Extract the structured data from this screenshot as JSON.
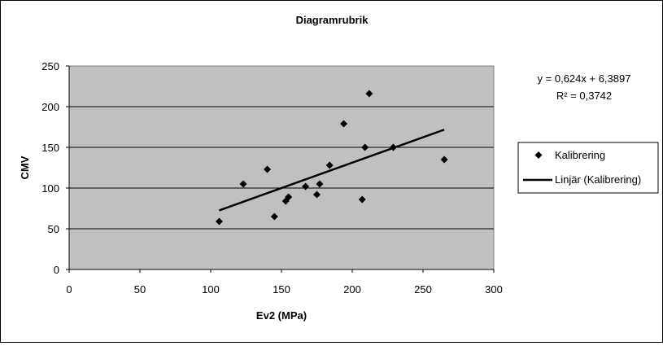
{
  "chart_data": {
    "type": "scatter",
    "title": "Diagramrubrik",
    "xlabel": "Ev2 (MPa)",
    "ylabel": "CMV",
    "xlim": [
      0,
      300
    ],
    "ylim": [
      0,
      250
    ],
    "xticks": [
      "0",
      "50",
      "100",
      "150",
      "200",
      "250",
      "300"
    ],
    "yticks": [
      "0",
      "50",
      "100",
      "150",
      "200",
      "250"
    ],
    "grid": "horizontal",
    "legend_position": "right",
    "series": [
      {
        "name": "Kalibrering",
        "marker": "diamond",
        "color": "#000000",
        "points": [
          {
            "x": 106,
            "y": 59
          },
          {
            "x": 123,
            "y": 105
          },
          {
            "x": 140,
            "y": 123
          },
          {
            "x": 145,
            "y": 65
          },
          {
            "x": 153,
            "y": 84
          },
          {
            "x": 155,
            "y": 89
          },
          {
            "x": 167,
            "y": 102
          },
          {
            "x": 175,
            "y": 92
          },
          {
            "x": 177,
            "y": 105
          },
          {
            "x": 184,
            "y": 128
          },
          {
            "x": 194,
            "y": 179
          },
          {
            "x": 207,
            "y": 86
          },
          {
            "x": 209,
            "y": 150
          },
          {
            "x": 212,
            "y": 216
          },
          {
            "x": 229,
            "y": 150
          },
          {
            "x": 265,
            "y": 135
          }
        ]
      }
    ],
    "trendline": {
      "name": "Linjär (Kalibrering)",
      "slope": 0.624,
      "intercept": 6.3897,
      "x_range": [
        106,
        265
      ],
      "equation": "y = 0,624x + 6,3897",
      "r_squared": "R² = 0,3742"
    },
    "plot_background": "#c0c0c0"
  }
}
